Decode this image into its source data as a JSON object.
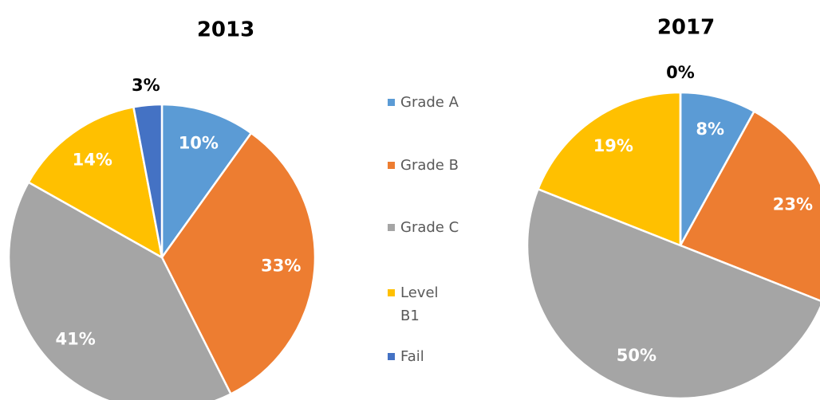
{
  "chart_data": [
    {
      "type": "pie",
      "title": "2013",
      "categories": [
        "Grade A",
        "Grade B",
        "Grade C",
        "Level B1",
        "Fail"
      ],
      "values": [
        10,
        33,
        41,
        14,
        3
      ],
      "value_labels": [
        "10%",
        "33%",
        "41%",
        "14%",
        "3%"
      ],
      "colors": [
        "#5b9bd5",
        "#ed7d31",
        "#a5a5a5",
        "#ffc000",
        "#4472c4"
      ]
    },
    {
      "type": "pie",
      "title": "2017",
      "categories": [
        "Grade A",
        "Grade B",
        "Grade C",
        "Level B1",
        "Fail"
      ],
      "values": [
        8,
        23,
        50,
        19,
        0
      ],
      "value_labels": [
        "8%",
        "23%",
        "50%",
        "19%",
        "0%"
      ],
      "colors": [
        "#5b9bd5",
        "#ed7d31",
        "#a5a5a5",
        "#ffc000",
        "#4472c4"
      ]
    }
  ]
}
